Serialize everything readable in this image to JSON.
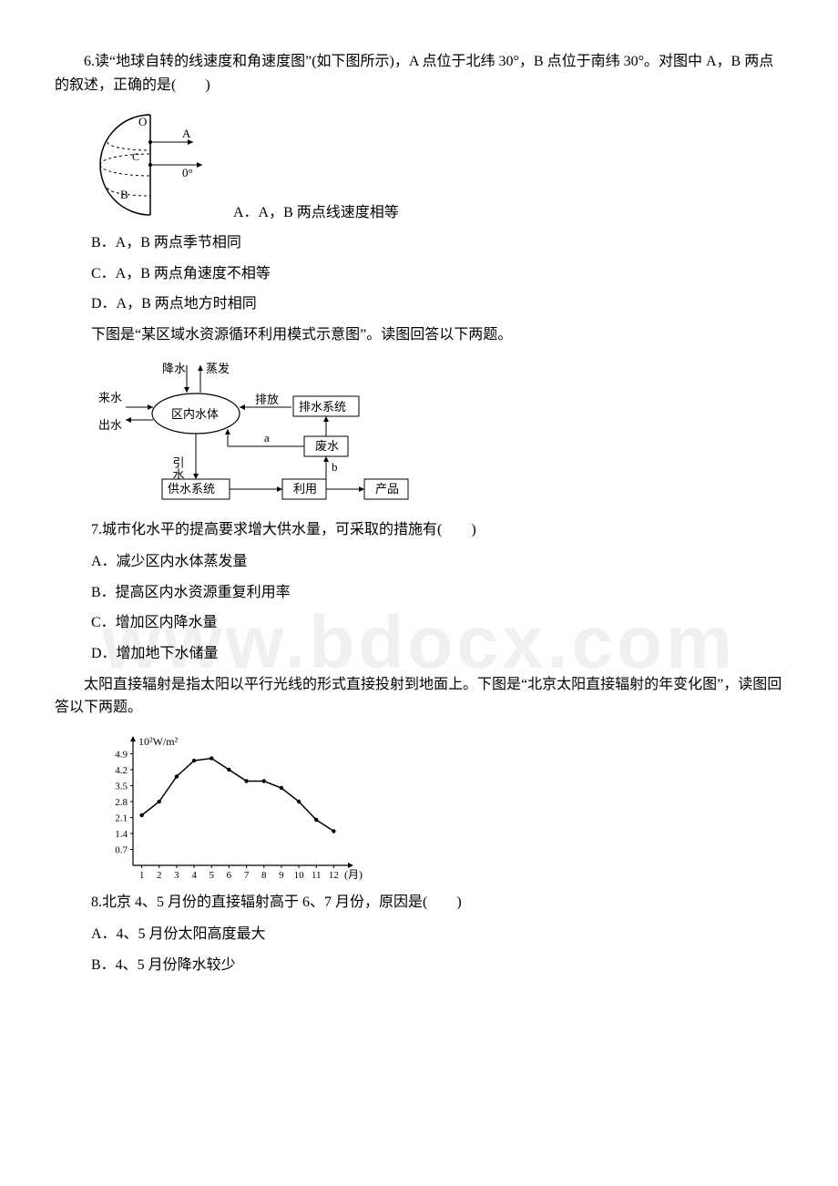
{
  "watermark": "www.bdocx.com",
  "q6": {
    "stem": "6.读“地球自转的线速度和角速度图”(如下图所示)，A 点位于北纬 30°，B 点位于南纬 30°。对图中 A，B 两点的叙述，正确的是(　　)",
    "optA_inline": "A．A，B 两点线速度相等",
    "optB": "B．A，B 两点季节相同",
    "optC": "C．A，B 两点角速度不相等",
    "optD": "D．A，B 两点地方时相同",
    "diagram": {
      "label_O": "O",
      "label_A": "A",
      "label_B": "B",
      "label_C": "C",
      "label_0deg": "0°"
    }
  },
  "q7": {
    "intro": "下图是“某区域水资源循环利用模式示意图”。读图回答以下两题。",
    "stem": "7.城市化水平的提高要求增大供水量，可采取的措施有(　　)",
    "optA": "A．减少区内水体蒸发量",
    "optB": "B．提高区内水资源重复利用率",
    "optC": "C．增加区内降水量",
    "optD": "D．增加地下水储量",
    "diagram": {
      "label_jiangshui": "降水",
      "label_zhengfa": "蒸发",
      "label_laishui": "来水",
      "label_chushui": "出水",
      "label_qunei": "区内水体",
      "label_paifang": "排放",
      "label_paishuixt": "排水系统",
      "label_feishui": "废水",
      "label_yinshui": "引水",
      "label_gongshuixt": "供水系统",
      "label_liyong": "利用",
      "label_chanpin": "产品",
      "label_a": "a",
      "label_b": "b"
    }
  },
  "q8": {
    "intro": "太阳直接辐射是指太阳以平行光线的形式直接投射到地面上。下图是“北京太阳直接辐射的年变化图”，读图回答以下两题。",
    "stem": "8.北京 4、5 月份的直接辐射高于 6、7 月份，原因是(　　)",
    "optA": "A．4、5 月份太阳高度最大",
    "optB": "B．4、5 月份降水较少",
    "chart": {
      "yLabel": "10²W/m²",
      "xLabel": "(月)",
      "yTicks": [
        "0.7",
        "1.4",
        "2.1",
        "2.8",
        "3.5",
        "4.2",
        "4.9"
      ],
      "xTicks": [
        "1",
        "2",
        "3",
        "4",
        "5",
        "6",
        "7",
        "8",
        "9",
        "10",
        "11",
        "12"
      ],
      "values": [
        2.2,
        2.8,
        3.9,
        4.6,
        4.7,
        4.2,
        3.7,
        3.7,
        3.4,
        2.8,
        2.0,
        1.5
      ]
    }
  }
}
